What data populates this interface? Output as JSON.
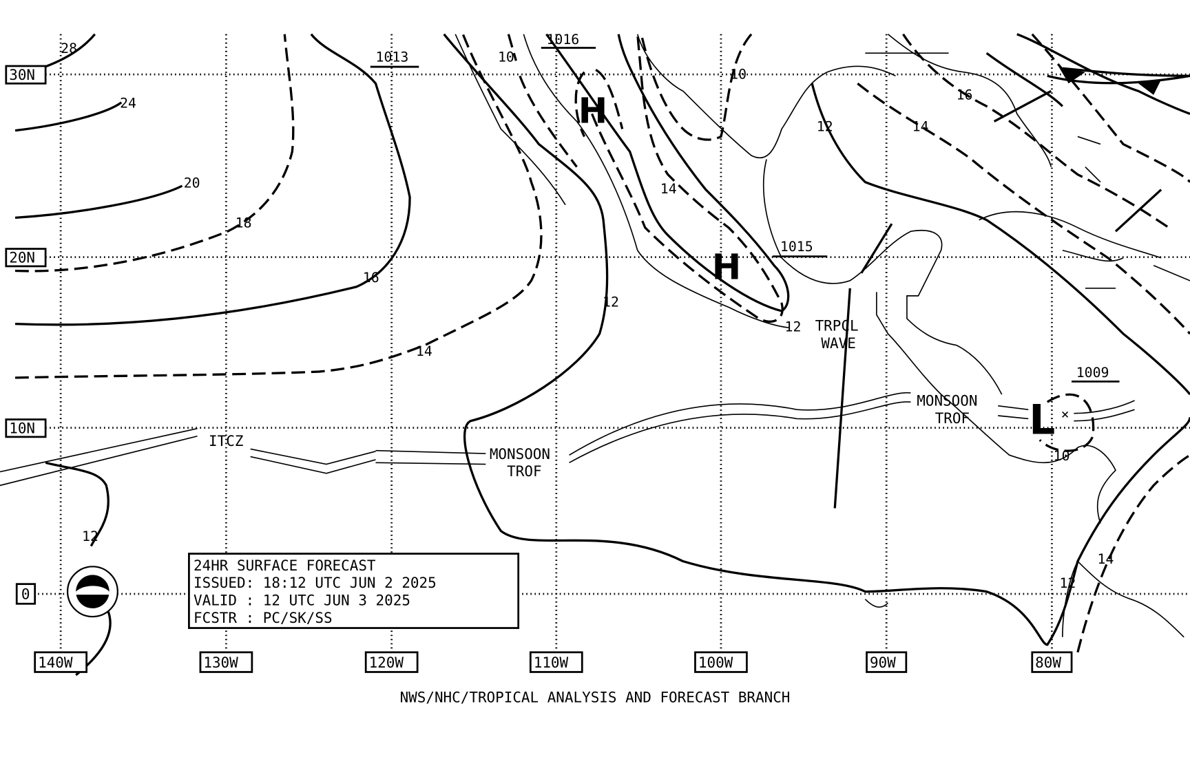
{
  "map": {
    "latitude_labels": [
      "30N",
      "20N",
      "10N",
      "0"
    ],
    "longitude_labels": [
      "140W",
      "130W",
      "120W",
      "110W",
      "100W",
      "90W",
      "80W"
    ],
    "pressure_centers": [
      {
        "type": "H",
        "label": ""
      },
      {
        "type": "H",
        "label": "1015"
      },
      {
        "type": "L",
        "label": "1009"
      }
    ],
    "pressure_values": [
      "1013",
      "1016"
    ],
    "isobar_labels": [
      "28",
      "24",
      "20",
      "18",
      "16",
      "14",
      "12",
      "10",
      "10",
      "12",
      "14",
      "14",
      "16",
      "12",
      "10",
      "12",
      "14",
      "12"
    ],
    "features": {
      "itcz": "ITCZ",
      "monsoon_trof_1": [
        "MONSOON",
        "TROF"
      ],
      "monsoon_trof_2": [
        "MONSOON",
        "TROF"
      ],
      "tropical_wave": [
        "TRPCL",
        "WAVE"
      ]
    }
  },
  "info_box": {
    "line1": "24HR SURFACE FORECAST",
    "line2": "ISSUED: 18:12 UTC JUN 2 2025",
    "line3": "VALID : 12 UTC JUN 3 2025",
    "line4": "FCSTR : PC/SK/SS"
  },
  "footer": "NWS/NHC/TROPICAL ANALYSIS AND FORECAST BRANCH",
  "logo": "NOAA"
}
